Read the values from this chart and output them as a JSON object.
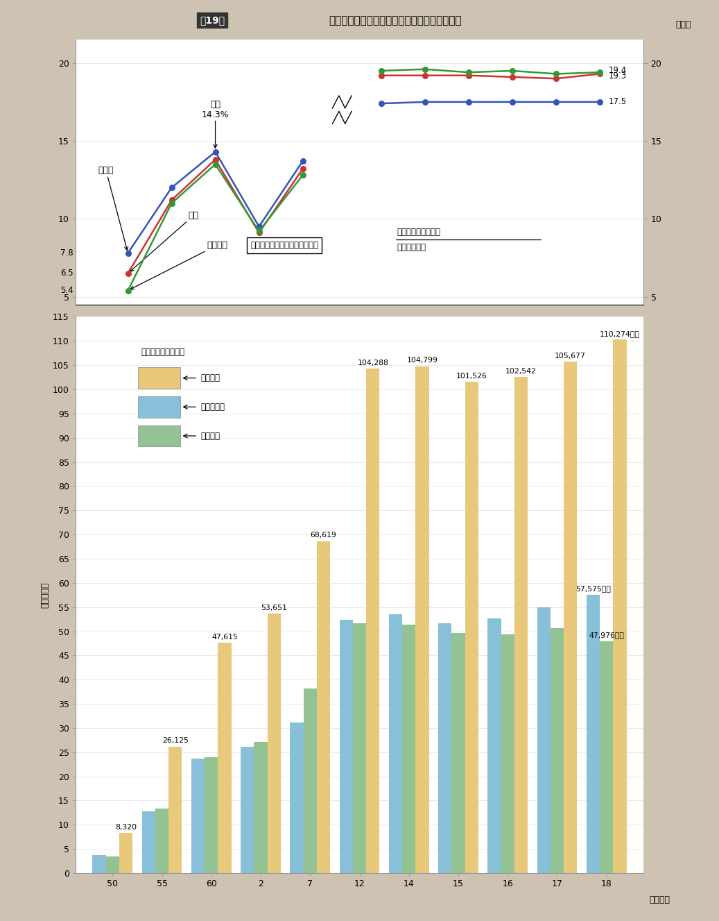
{
  "title_box_text": "第19図",
  "title_text": "公債費充当一般財源及び公債費負担比率の推移",
  "background_color": "#cec3b2",
  "chart_bg": "#ffffff",
  "line_years_labels": [
    "50",
    "55",
    "60",
    "2",
    "7",
    "12",
    "14",
    "15",
    "16",
    "17",
    "18"
  ],
  "line_x_pos": [
    0,
    1,
    2,
    3,
    4,
    5.8,
    6.8,
    7.8,
    8.8,
    9.8,
    10.8
  ],
  "line_shincalc": [
    6.5,
    11.2,
    13.8,
    9.1,
    13.2,
    19.2,
    19.2,
    19.2,
    19.1,
    19.0,
    19.3
  ],
  "line_shichoson": [
    7.8,
    12.0,
    14.3,
    9.5,
    13.7,
    17.4,
    17.5,
    17.5,
    17.5,
    17.5,
    17.5
  ],
  "line_todofuken": [
    5.4,
    11.0,
    13.5,
    9.2,
    12.8,
    19.5,
    19.6,
    19.4,
    19.5,
    19.3,
    19.4
  ],
  "line_color_shincalc": "#cc3333",
  "line_color_shichoson": "#3355bb",
  "line_color_todofuken": "#339933",
  "line_ylim": [
    4.5,
    21.5
  ],
  "line_yticks": [
    5,
    10,
    15,
    20
  ],
  "bar_years_labels": [
    "50",
    "55",
    "60",
    "2",
    "7",
    "12",
    "14",
    "15",
    "16",
    "17",
    "18"
  ],
  "bar_shichoson_100M": [
    3700,
    12700,
    23700,
    26100,
    31100,
    52300,
    53500,
    51700,
    52700,
    54900,
    57575
  ],
  "bar_todofuken_100M": [
    3500,
    13300,
    23900,
    27100,
    38200,
    51700,
    51300,
    49700,
    49400,
    50600,
    47976
  ],
  "bar_junkeisan_100M": [
    8320,
    26125,
    47615,
    53651,
    68619,
    104288,
    104799,
    101526,
    102542,
    105677,
    110274
  ],
  "bar_color_shichoson": "#87c0d8",
  "bar_color_todofuken": "#93c293",
  "bar_color_junkeisan": "#e8c87a",
  "bar_ylim_1000": [
    0,
    115
  ],
  "bar_top_labels_jun": {
    "0": "8,320",
    "1": "26,125",
    "2": "47,615",
    "3": "53,651",
    "4": "68,619",
    "5": "104,288",
    "6": "104,799",
    "7": "101,526",
    "8": "102,542",
    "9": "105,677",
    "10": "110,274億円"
  },
  "bar_shichoson_label_last": "57,575億円",
  "bar_todofuken_label_last": "47,976億円"
}
